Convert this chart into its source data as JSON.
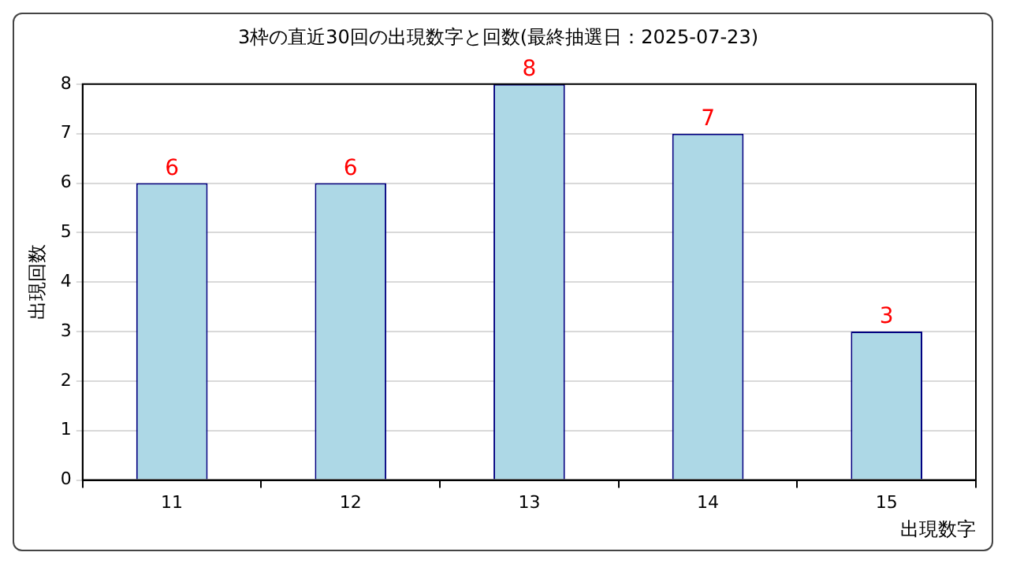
{
  "chart_data": {
    "type": "bar",
    "title": "3枠の直近30回の出現数字と回数(最終抽選日：2025-07-23)",
    "xlabel": "出現数字",
    "ylabel": "出現回数",
    "categories": [
      "11",
      "12",
      "13",
      "14",
      "15"
    ],
    "series": [
      {
        "color": "#add8e6",
        "values": [
          6,
          6,
          8,
          7,
          3
        ]
      }
    ],
    "ylim": [
      0,
      8
    ],
    "yticks": [
      0,
      1,
      2,
      3,
      4,
      5,
      6,
      7,
      8
    ],
    "grid": "y",
    "data_labels": true,
    "legend": false
  }
}
